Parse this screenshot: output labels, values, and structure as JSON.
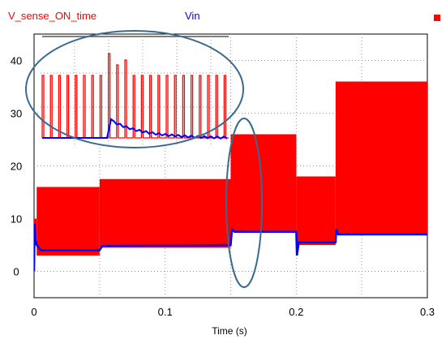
{
  "chart_data": {
    "type": "line",
    "xlabel": "Time (s)",
    "ylabel": "",
    "xlim": [
      0,
      0.3
    ],
    "ylim": [
      -5,
      45
    ],
    "x_ticks": [
      0,
      0.1,
      0.2,
      0.3
    ],
    "x_tick_labels": [
      "0",
      "0.1",
      "0.2",
      "0.3"
    ],
    "y_ticks": [
      0,
      10,
      20,
      30,
      40
    ],
    "y_tick_labels": [
      "0",
      "10",
      "20",
      "30",
      "40"
    ],
    "grid": true,
    "legend_position": "top",
    "series": [
      {
        "name": "V_sense_ON_time",
        "color": "#ff0000",
        "style": "dense switching envelope (filled band)",
        "segments": [
          {
            "t_start": 0.0,
            "t_end": 0.002,
            "low": 5,
            "high": 10
          },
          {
            "t_start": 0.002,
            "t_end": 0.05,
            "low": 3,
            "high": 16
          },
          {
            "t_start": 0.05,
            "t_end": 0.15,
            "low": 4.5,
            "high": 17.5
          },
          {
            "t_start": 0.15,
            "t_end": 0.2,
            "low": 7.5,
            "high": 26
          },
          {
            "t_start": 0.2,
            "t_end": 0.23,
            "low": 5,
            "high": 18
          },
          {
            "t_start": 0.23,
            "t_end": 0.3,
            "low": 7,
            "high": 36
          }
        ]
      },
      {
        "name": "Vin",
        "color": "#0000ff",
        "style": "line",
        "points": [
          [
            0.0,
            0
          ],
          [
            0.0005,
            9
          ],
          [
            0.001,
            6
          ],
          [
            0.002,
            5
          ],
          [
            0.005,
            4
          ],
          [
            0.05,
            4
          ],
          [
            0.052,
            4.8
          ],
          [
            0.15,
            5
          ],
          [
            0.151,
            8
          ],
          [
            0.153,
            7.5
          ],
          [
            0.2,
            7.5
          ],
          [
            0.2005,
            3
          ],
          [
            0.202,
            5.5
          ],
          [
            0.23,
            5.5
          ],
          [
            0.2305,
            8
          ],
          [
            0.232,
            7
          ],
          [
            0.3,
            7
          ]
        ]
      }
    ],
    "annotations": {
      "inset": "zoomed view of switching pulses: red pulse train with a transient spike, blue Vin step with decay",
      "highlights": [
        "ellipse around inset",
        "ellipse around transition near t=0.15 s"
      ]
    }
  }
}
